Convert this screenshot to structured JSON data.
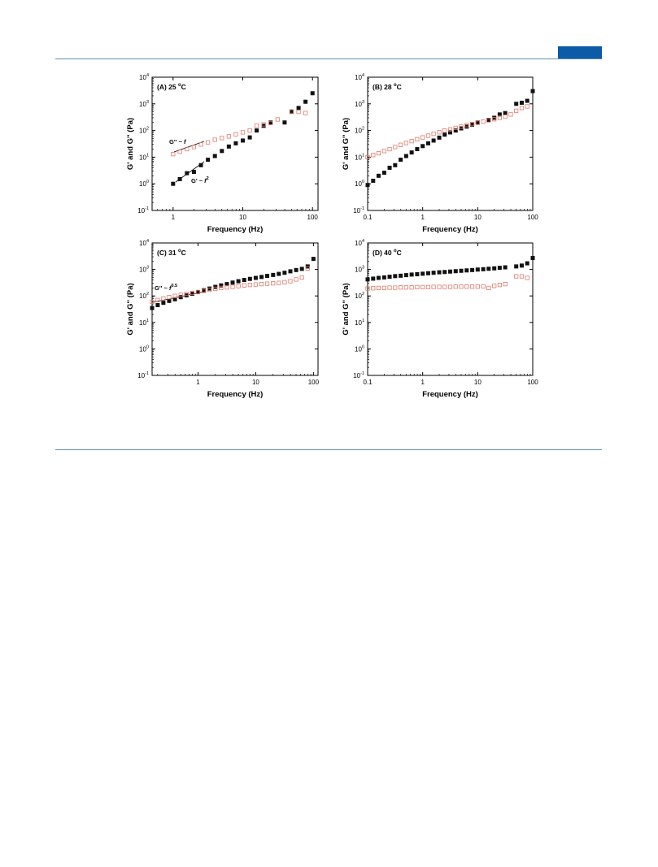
{
  "page": {
    "accent_color": "#0d5aa7",
    "rule_color": "#5f8fb0"
  },
  "chart_data": [
    {
      "type": "scatter",
      "panel_label": "(A) 25 °C",
      "panel_letter": "(A) 25",
      "xlabel": "Frequency (Hz)",
      "ylabel": "G' and G'' (Pa)",
      "xscale": "log",
      "yscale": "log",
      "xlim": [
        0.5,
        120
      ],
      "ylim": [
        0.1,
        10000
      ],
      "xticks": [
        1,
        10,
        100
      ],
      "xtick_labels": [
        "1",
        "10",
        "100"
      ],
      "yticks": [
        0.1,
        1,
        10,
        100,
        1000,
        10000
      ],
      "series": [
        {
          "marker": "filled-square",
          "color": "#111111",
          "x": [
            1.0,
            1.25,
            1.58,
            1.99,
            2.51,
            3.16,
            3.98,
            5.01,
            6.31,
            7.94,
            10,
            12.6,
            15.8,
            19.9,
            25.1,
            39.8,
            50.1,
            63.1,
            79.4,
            100
          ],
          "y": [
            1.0,
            1.5,
            2.5,
            2.8,
            5,
            8,
            11,
            17,
            25,
            33,
            42,
            55,
            100,
            150,
            200,
            200,
            500,
            700,
            1200,
            2500
          ]
        },
        {
          "marker": "open-square",
          "color": "#e07a6a",
          "x": [
            1.0,
            1.25,
            1.58,
            1.99,
            2.51,
            3.16,
            3.98,
            5.01,
            6.31,
            7.94,
            10,
            12.6,
            15.8,
            19.9,
            25.1,
            31.6,
            50.1,
            63.1,
            79.4
          ],
          "y": [
            13,
            16,
            20,
            24,
            30,
            36,
            45,
            52,
            60,
            72,
            85,
            100,
            150,
            170,
            190,
            260,
            520,
            500,
            450
          ]
        }
      ],
      "annotations": [
        {
          "text": "G'' ~ f",
          "label": "G'' ~ ",
          "var": "f",
          "exp": ""
        },
        {
          "text": "G' ~ f2",
          "label": "G' ~ ",
          "var": "f",
          "exp": "2"
        }
      ]
    },
    {
      "type": "scatter",
      "panel_label": "(B) 28 °C",
      "panel_letter": "(B) 28",
      "xlabel": "Frequency (Hz)",
      "ylabel": "G' and G'' (Pa)",
      "xscale": "log",
      "yscale": "log",
      "xlim": [
        0.1,
        100
      ],
      "ylim": [
        0.1,
        10000
      ],
      "xticks": [
        0.1,
        1,
        10,
        100
      ],
      "xtick_labels": [
        "0.1",
        "1",
        "10",
        "100"
      ],
      "yticks": [
        0.1,
        1,
        10,
        100,
        1000,
        10000
      ],
      "series": [
        {
          "marker": "filled-square",
          "color": "#111111",
          "x": [
            0.1,
            0.126,
            0.158,
            0.2,
            0.251,
            0.316,
            0.398,
            0.501,
            0.631,
            0.794,
            1.0,
            1.26,
            1.58,
            2.0,
            2.51,
            3.16,
            3.98,
            5.01,
            6.31,
            7.94,
            10,
            15.8,
            20,
            25.1,
            31.6,
            50.1,
            63.1,
            79.4,
            100
          ],
          "y": [
            0.9,
            1.3,
            2.0,
            2.6,
            4,
            5,
            8,
            11,
            15,
            20,
            26,
            33,
            42,
            54,
            70,
            85,
            100,
            120,
            140,
            165,
            200,
            250,
            300,
            400,
            450,
            1000,
            1100,
            1300,
            3000
          ]
        },
        {
          "marker": "open-square",
          "color": "#e07a6a",
          "x": [
            0.1,
            0.126,
            0.158,
            0.2,
            0.251,
            0.316,
            0.398,
            0.501,
            0.631,
            0.794,
            1.0,
            1.26,
            1.58,
            2.0,
            2.51,
            3.16,
            3.98,
            5.01,
            6.31,
            7.94,
            10,
            12.6,
            15.8,
            20,
            25.1,
            31.6,
            39.8,
            50.1,
            63.1,
            79.4
          ],
          "y": [
            10,
            12,
            14,
            17,
            20,
            24,
            29,
            34,
            40,
            47,
            55,
            64,
            75,
            86,
            100,
            110,
            125,
            140,
            160,
            175,
            195,
            215,
            240,
            265,
            300,
            330,
            400,
            550,
            700,
            800
          ]
        }
      ]
    },
    {
      "type": "scatter",
      "panel_label": "(C) 31 °C",
      "panel_letter": "(C) 31",
      "xlabel": "Frequency (Hz)",
      "ylabel": "G' and G'' (Pa)",
      "xscale": "log",
      "yscale": "log",
      "xlim": [
        0.16,
        120
      ],
      "ylim": [
        0.1,
        10000
      ],
      "xticks": [
        1,
        10,
        100
      ],
      "xtick_labels": [
        "1",
        "10",
        "100"
      ],
      "yticks": [
        0.1,
        1,
        10,
        100,
        1000,
        10000
      ],
      "series": [
        {
          "marker": "filled-square",
          "color": "#111111",
          "x": [
            0.16,
            0.2,
            0.251,
            0.316,
            0.398,
            0.501,
            0.631,
            0.794,
            1.0,
            1.26,
            1.58,
            2.0,
            2.51,
            3.16,
            3.98,
            5.01,
            6.31,
            7.94,
            10,
            12.6,
            15.8,
            20,
            25.1,
            31.6,
            39.8,
            50.1,
            63.1,
            79.4,
            100
          ],
          "y": [
            35,
            45,
            55,
            65,
            75,
            90,
            105,
            120,
            140,
            165,
            190,
            220,
            250,
            280,
            320,
            360,
            400,
            440,
            480,
            520,
            570,
            620,
            680,
            750,
            850,
            950,
            1050,
            1300,
            2500
          ]
        },
        {
          "marker": "open-square",
          "color": "#e07a6a",
          "x": [
            0.16,
            0.2,
            0.251,
            0.316,
            0.398,
            0.501,
            0.631,
            0.794,
            1.0,
            1.26,
            1.58,
            2.0,
            2.51,
            3.16,
            3.98,
            5.01,
            6.31,
            7.94,
            10,
            12.6,
            15.8,
            20,
            25.1,
            31.6,
            39.8,
            50.1,
            63.1,
            79.4
          ],
          "y": [
            60,
            70,
            80,
            90,
            100,
            110,
            120,
            130,
            140,
            155,
            170,
            185,
            200,
            210,
            220,
            235,
            250,
            260,
            270,
            280,
            290,
            300,
            310,
            330,
            360,
            420,
            500,
            1100
          ]
        }
      ],
      "annotations": [
        {
          "text": "G'' ~ f0.5",
          "label": "G'' ~ ",
          "var": "f",
          "exp": "0.5"
        }
      ]
    },
    {
      "type": "scatter",
      "panel_label": "(D) 40 °C",
      "panel_letter": "(D) 40",
      "xlabel": "Frequency (Hz)",
      "ylabel": "G' and G'' (Pa)",
      "xscale": "log",
      "yscale": "log",
      "xlim": [
        0.1,
        100
      ],
      "ylim": [
        0.1,
        10000
      ],
      "xticks": [
        0.1,
        1,
        10,
        100
      ],
      "xtick_labels": [
        "0.1",
        "1",
        "10",
        "100"
      ],
      "yticks": [
        0.1,
        1,
        10,
        100,
        1000,
        10000
      ],
      "series": [
        {
          "marker": "filled-square",
          "color": "#111111",
          "x": [
            0.1,
            0.126,
            0.158,
            0.2,
            0.251,
            0.316,
            0.398,
            0.501,
            0.631,
            0.794,
            1.0,
            1.26,
            1.58,
            2.0,
            2.51,
            3.16,
            3.98,
            5.01,
            6.31,
            7.94,
            10,
            12.6,
            15.8,
            20,
            25.1,
            31.6,
            50.1,
            63.1,
            79.4,
            100
          ],
          "y": [
            420,
            450,
            480,
            500,
            530,
            560,
            580,
            610,
            640,
            660,
            690,
            720,
            750,
            780,
            800,
            830,
            860,
            890,
            920,
            950,
            990,
            1020,
            1060,
            1100,
            1150,
            1200,
            1300,
            1400,
            1700,
            2700
          ]
        },
        {
          "marker": "open-square",
          "color": "#e07a6a",
          "x": [
            0.1,
            0.126,
            0.158,
            0.2,
            0.251,
            0.316,
            0.398,
            0.501,
            0.631,
            0.794,
            1.0,
            1.26,
            1.58,
            2.0,
            2.51,
            3.16,
            3.98,
            5.01,
            6.31,
            7.94,
            10,
            12.6,
            15.8,
            20,
            25.1,
            31.6,
            50.1,
            63.1,
            79.4
          ],
          "y": [
            190,
            195,
            200,
            200,
            205,
            205,
            210,
            210,
            210,
            215,
            215,
            215,
            220,
            220,
            220,
            220,
            225,
            225,
            225,
            225,
            225,
            230,
            200,
            240,
            260,
            280,
            550,
            550,
            480
          ]
        }
      ]
    }
  ]
}
